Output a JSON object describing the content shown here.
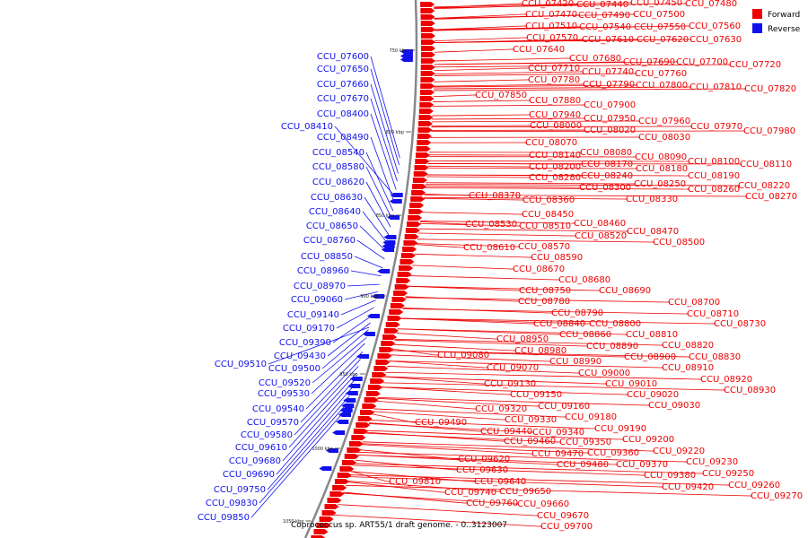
{
  "caption": "Coprococcus sp. ART55/1 draft genome. - 0..3123007",
  "colors": {
    "forward": "#ee0000",
    "reverse": "#1111ee",
    "backbone": "#888888"
  },
  "legend": [
    {
      "label": "Forward",
      "color": "#ee0000"
    },
    {
      "label": "Reverse",
      "color": "#1111ee"
    }
  ],
  "scale_ticks": [
    "750 kbp",
    "800 kbp",
    "850 kbp",
    "900 kbp",
    "950 kbp",
    "1000 kbp",
    "1050 kbp"
  ],
  "forward_labels": [
    "CCU_07420",
    "CCU_07440",
    "CCU_07450",
    "CCU_07480",
    "CCU_07470",
    "CCU_07490",
    "CCU_07500",
    "CCU_07510",
    "CCU_07540",
    "CCU_07550",
    "CCU_07560",
    "CCU_07570",
    "CCU_07610",
    "CCU_07620",
    "CCU_07630",
    "CCU_07640",
    "CCU_07680",
    "CCU_07690",
    "CCU_07700",
    "CCU_07720",
    "CCU_07710",
    "CCU_07740",
    "CCU_07760",
    "CCU_07780",
    "CCU_07790",
    "CCU_07800",
    "CCU_07810",
    "CCU_07820",
    "CCU_07850",
    "CCU_07880",
    "CCU_07900",
    "CCU_07940",
    "CCU_07950",
    "CCU_07960",
    "CCU_08000",
    "CCU_08020",
    "CCU_07970",
    "CCU_07980",
    "CCU_08030",
    "CCU_08070",
    "CCU_08080",
    "CCU_08090",
    "CCU_08140",
    "CCU_08170",
    "CCU_08100",
    "CCU_08110",
    "CCU_08200",
    "CCU_08180",
    "CCU_08240",
    "CCU_08190",
    "CCU_08280",
    "CCU_08250",
    "CCU_08220",
    "CCU_08300",
    "CCU_08260",
    "CCU_08270",
    "CCU_08370",
    "CCU_08330",
    "CCU_08360",
    "CCU_08450",
    "CCU_08460",
    "CCU_08530",
    "CCU_08510",
    "CCU_08470",
    "CCU_08520",
    "CCU_08500",
    "CCU_08610",
    "CCU_08570",
    "CCU_08590",
    "CCU_08670",
    "CCU_08680",
    "CCU_08750",
    "CCU_08690",
    "CCU_08780",
    "CCU_08700",
    "CCU_08710",
    "CCU_08790",
    "CCU_08730",
    "CCU_08840",
    "CCU_08800",
    "CCU_08860",
    "CCU_08810",
    "CCU_08950",
    "CCU_08820",
    "CCU_08890",
    "CCU_08980",
    "CCU_08900",
    "CCU_08830",
    "CCU_09080",
    "CCU_08990",
    "CCU_08910",
    "CCU_09070",
    "CCU_09000",
    "CCU_08920",
    "CCU_09010",
    "CCU_08930",
    "CCU_09130",
    "CCU_09020",
    "CCU_09150",
    "CCU_09030",
    "CCU_09160",
    "CCU_09320",
    "CCU_09180",
    "CCU_09330",
    "CCU_09490",
    "CCU_09190",
    "CCU_09440",
    "CCU_09340",
    "CCU_09200",
    "CCU_09460",
    "CCU_09350",
    "CCU_09220",
    "CCU_09360",
    "CCU_09230",
    "CCU_09470",
    "CCU_09370",
    "CCU_09250",
    "CCU_09480",
    "CCU_09380",
    "CCU_09620",
    "CCU_09420",
    "CCU_09260",
    "CCU_09270",
    "CCU_09630",
    "CCU_09640",
    "CCU_09810",
    "CCU_09650",
    "CCU_09740",
    "CCU_09660",
    "CCU_09760",
    "CCU_09670",
    "CCU_09700"
  ],
  "reverse_labels": [
    "CCU_07600",
    "CCU_07650",
    "CCU_07660",
    "CCU_07670",
    "CCU_08400",
    "CCU_08410",
    "CCU_08490",
    "CCU_08540",
    "CCU_08580",
    "CCU_08620",
    "CCU_08630",
    "CCU_08640",
    "CCU_08650",
    "CCU_08760",
    "CCU_08850",
    "CCU_08960",
    "CCU_08970",
    "CCU_09060",
    "CCU_09140",
    "CCU_09170",
    "CCU_09390",
    "CCU_09430",
    "CCU_09510",
    "CCU_09500",
    "CCU_09520",
    "CCU_09530",
    "CCU_09540",
    "CCU_09570",
    "CCU_09580",
    "CCU_09610",
    "CCU_09680",
    "CCU_09690",
    "CCU_09750",
    "CCU_09830",
    "CCU_09850"
  ]
}
